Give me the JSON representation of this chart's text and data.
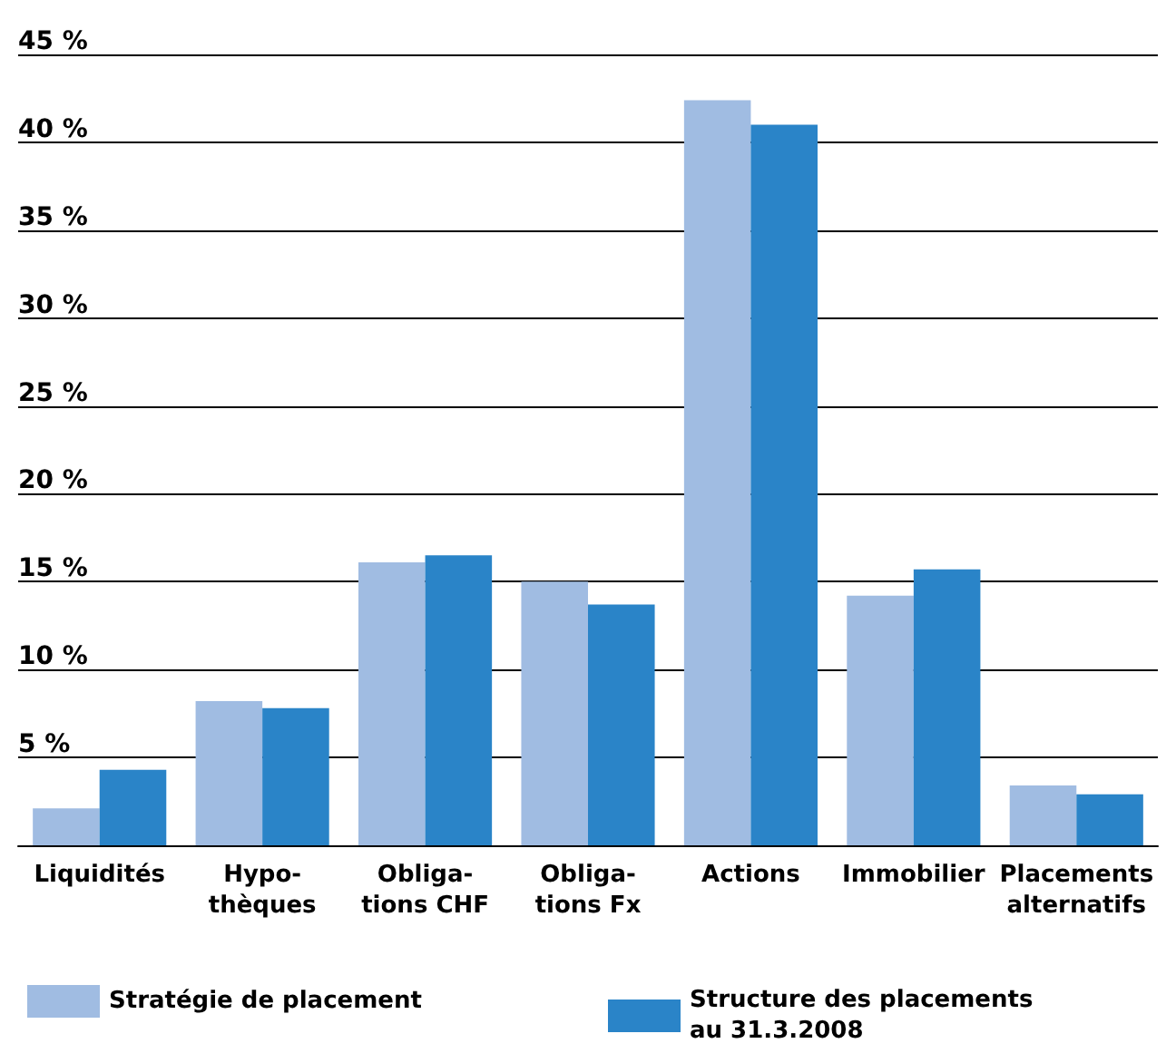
{
  "chart_data": {
    "type": "bar",
    "categories": [
      "Liquidités",
      "Hypo-\nthèques",
      "Obliga-\ntions CHF",
      "Obliga-\ntions Fx",
      "Actions",
      "Immobilier",
      "Placements\nalternatifs"
    ],
    "series": [
      {
        "name": "Stratégie de placement",
        "color": "#a0bce2",
        "values": [
          2.1,
          8.2,
          16.1,
          15.0,
          42.4,
          14.2,
          3.4
        ]
      },
      {
        "name": "Structure des placements\nau 31.3.2008",
        "color": "#2a84c8",
        "values": [
          4.3,
          7.8,
          16.5,
          13.7,
          41.0,
          15.7,
          2.9
        ]
      }
    ],
    "ylim": [
      0,
      45
    ],
    "yticks": [
      {
        "value": 0,
        "label": null
      },
      {
        "value": 5,
        "label": "5 %"
      },
      {
        "value": 10,
        "label": "10 %"
      },
      {
        "value": 15,
        "label": "15 %"
      },
      {
        "value": 20,
        "label": "20 %"
      },
      {
        "value": 25,
        "label": "25 %"
      },
      {
        "value": 30,
        "label": "30 %"
      },
      {
        "value": 35,
        "label": "35 %"
      },
      {
        "value": 40,
        "label": "40 %"
      },
      {
        "value": 45,
        "label": "45 %"
      }
    ],
    "grid": "y",
    "legend": "bottom"
  }
}
